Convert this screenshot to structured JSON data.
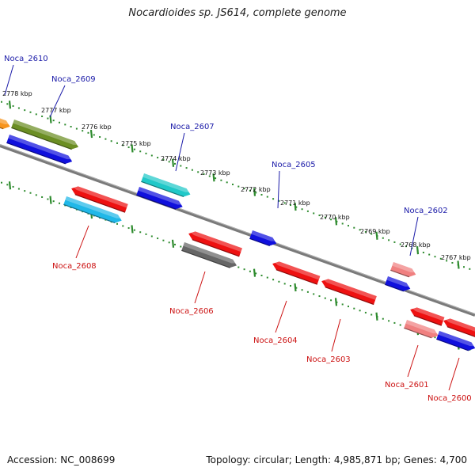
{
  "title": "Nocardioides sp. JS614, complete genome",
  "footer": {
    "accession": "Accession: NC_008699",
    "summary": "Topology: circular; Length: 4,985,871 bp; Genes: 4,700"
  },
  "colors": {
    "backbone": "#7a7a7a",
    "tick_dots": "#2e8b2e",
    "label_top": "#1a1aa8",
    "label_bottom": "#cc1111"
  },
  "ticks": [
    "2778 kbp",
    "2777 kbp",
    "2776 kbp",
    "2775 kbp",
    "2774 kbp",
    "2773 kbp",
    "2772 kbp",
    "2771 kbp",
    "2770 kbp",
    "2769 kbp",
    "2768 kbp",
    "2767 kbp"
  ],
  "genes": [
    {
      "label": "Noca_2610",
      "color": "#f7941d",
      "strand": "top"
    },
    {
      "label": "Noca_2609",
      "color": "#6b8e23",
      "strand": "top"
    },
    {
      "label": "",
      "color": "#1010dd",
      "strand": "top"
    },
    {
      "label": "Noca_2607",
      "color": "#20c8c8",
      "strand": "top"
    },
    {
      "label": "",
      "color": "#1010dd",
      "strand": "top"
    },
    {
      "label": "Noca_2605",
      "color": "#1010dd",
      "strand": "top"
    },
    {
      "label": "Noca_2602",
      "color": "#f08080",
      "strand": "top"
    },
    {
      "label": "",
      "color": "#1010dd",
      "strand": "top"
    },
    {
      "label": "Noca_2608",
      "color": "#ee1111",
      "strand": "bottom"
    },
    {
      "label": "",
      "color": "#20b8e8",
      "strand": "bottom"
    },
    {
      "label": "Noca_2606",
      "color": "#ee1111",
      "strand": "bottom"
    },
    {
      "label": "",
      "color": "#666666",
      "strand": "bottom"
    },
    {
      "label": "Noca_2604",
      "color": "#ee1111",
      "strand": "bottom"
    },
    {
      "label": "Noca_2603",
      "color": "#ee1111",
      "strand": "bottom"
    },
    {
      "label": "Noca_2601",
      "color": "#ee1111",
      "strand": "bottom"
    },
    {
      "label": "",
      "color": "#f08080",
      "strand": "bottom"
    },
    {
      "label": "Noca_2600",
      "color": "#ee1111",
      "strand": "bottom"
    },
    {
      "label": "",
      "color": "#1010dd",
      "strand": "bottom"
    }
  ]
}
